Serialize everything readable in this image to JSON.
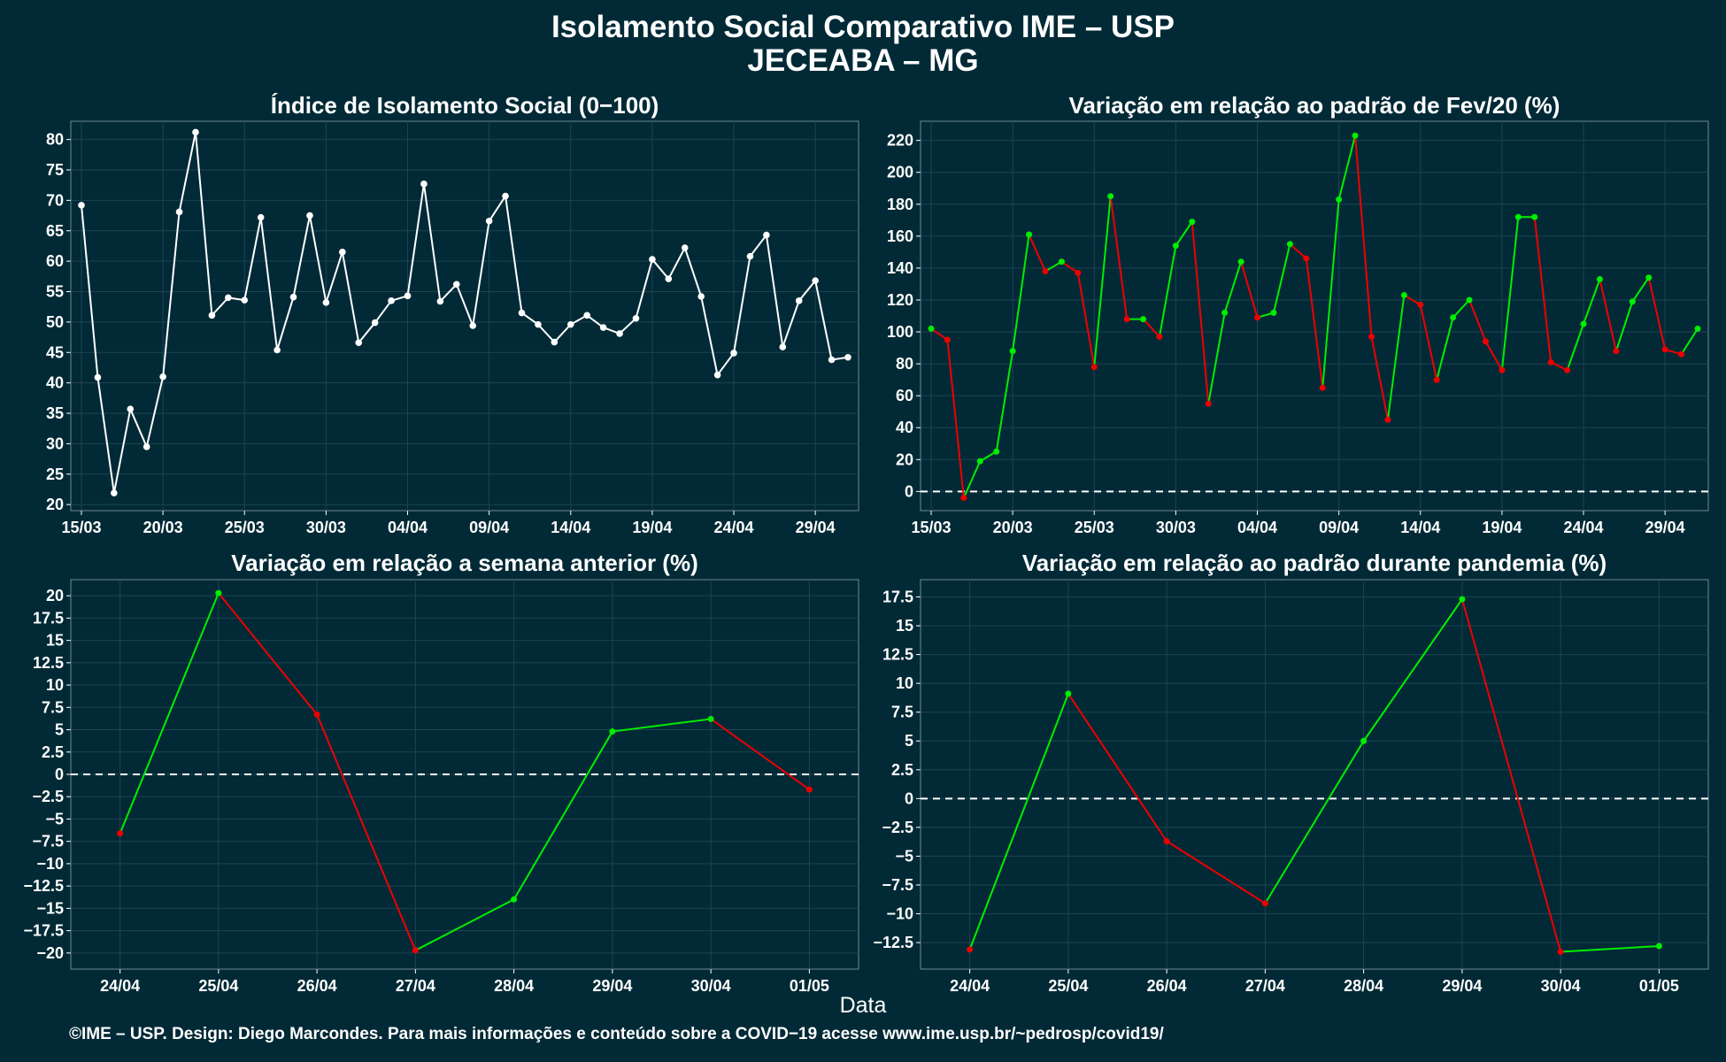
{
  "header": {
    "title_line1": "Isolamento Social Comparativo IME – USP",
    "title_line2": "JECEABA – MG"
  },
  "xlabel": "Data",
  "caption": "©IME – USP. Design: Diego Marcondes. Para mais informações e conteúdo sobre a COVID−19 acesse www.ime.usp.br/~pedrosp/covid19/",
  "colors": {
    "background": "#022a36",
    "grid": "#1d4450",
    "positive": "#00ee00",
    "negative": "#ee0000",
    "index_line": "#ffffff",
    "zero_line": "#ffffff"
  },
  "chart_data": [
    {
      "id": "indice",
      "type": "line",
      "title": "Índice de Isolamento Social (0−100)",
      "x_start": "15/03",
      "x_ticks": [
        "15/03",
        "20/03",
        "25/03",
        "30/03",
        "04/04",
        "09/04",
        "14/04",
        "19/04",
        "24/04",
        "29/04"
      ],
      "ylim": [
        19,
        83
      ],
      "y_ticks": [
        20,
        25,
        30,
        35,
        40,
        45,
        50,
        55,
        60,
        65,
        70,
        75,
        80
      ],
      "zero_line": false,
      "color_mode": "single",
      "values": [
        69.2,
        40.9,
        21.9,
        35.7,
        29.5,
        41.0,
        68.1,
        81.2,
        51.1,
        54.0,
        53.6,
        67.2,
        45.4,
        54.1,
        67.5,
        53.2,
        61.5,
        46.6,
        49.9,
        53.5,
        54.3,
        72.7,
        53.4,
        56.2,
        49.4,
        66.6,
        70.7,
        51.5,
        49.6,
        46.7,
        49.6,
        51.1,
        49.1,
        48.1,
        50.6,
        60.3,
        57.1,
        62.2,
        54.2,
        41.3,
        44.9,
        60.8,
        64.3,
        45.9,
        53.5,
        56.8,
        43.8,
        44.2
      ]
    },
    {
      "id": "fev20",
      "type": "line",
      "title": "Variação em relação ao padrão de Fev/20 (%)",
      "x_start": "15/03",
      "x_ticks": [
        "15/03",
        "20/03",
        "25/03",
        "30/03",
        "04/04",
        "09/04",
        "14/04",
        "19/04",
        "24/04",
        "29/04"
      ],
      "ylim": [
        -12,
        232
      ],
      "y_ticks": [
        0,
        20,
        40,
        60,
        80,
        100,
        120,
        140,
        160,
        180,
        200,
        220
      ],
      "zero_line": true,
      "color_mode": "sign",
      "values": [
        102,
        95,
        -4,
        19,
        25,
        88,
        161,
        138,
        144,
        137,
        78,
        185,
        108,
        108,
        97,
        154,
        169,
        55,
        112,
        144,
        109,
        112,
        155,
        146,
        65,
        183,
        223,
        97,
        45,
        123,
        117,
        70,
        109,
        120,
        94,
        76,
        172,
        172,
        81,
        76,
        105,
        133,
        88,
        119,
        134,
        89,
        86,
        102
      ]
    },
    {
      "id": "semana",
      "type": "line",
      "title": "Variação em relação a semana anterior (%)",
      "categories": [
        "24/04",
        "25/04",
        "26/04",
        "27/04",
        "28/04",
        "29/04",
        "30/04",
        "01/05"
      ],
      "ylim": [
        -21.8,
        21.8
      ],
      "y_ticks": [
        -20,
        -17.5,
        -15,
        -12.5,
        -10,
        -7.5,
        -5,
        -2.5,
        0,
        2.5,
        5,
        7.5,
        10,
        12.5,
        15,
        17.5,
        20
      ],
      "zero_line": true,
      "color_mode": "sign",
      "values": [
        -6.6,
        20.3,
        6.7,
        -19.7,
        -14.0,
        4.8,
        6.2,
        -1.7
      ]
    },
    {
      "id": "pandemia",
      "type": "line",
      "title": "Variação em relação ao padrão durante pandemia (%)",
      "categories": [
        "24/04",
        "25/04",
        "26/04",
        "27/04",
        "28/04",
        "29/04",
        "30/04",
        "01/05"
      ],
      "ylim": [
        -14.8,
        19.0
      ],
      "y_ticks": [
        -12.5,
        -10,
        -7.5,
        -5,
        -2.5,
        0,
        2.5,
        5,
        7.5,
        10,
        12.5,
        15,
        17.5
      ],
      "zero_line": true,
      "color_mode": "sign",
      "values": [
        -13.1,
        9.1,
        -3.7,
        -9.1,
        5.0,
        17.3,
        -13.3,
        -12.8
      ]
    }
  ]
}
